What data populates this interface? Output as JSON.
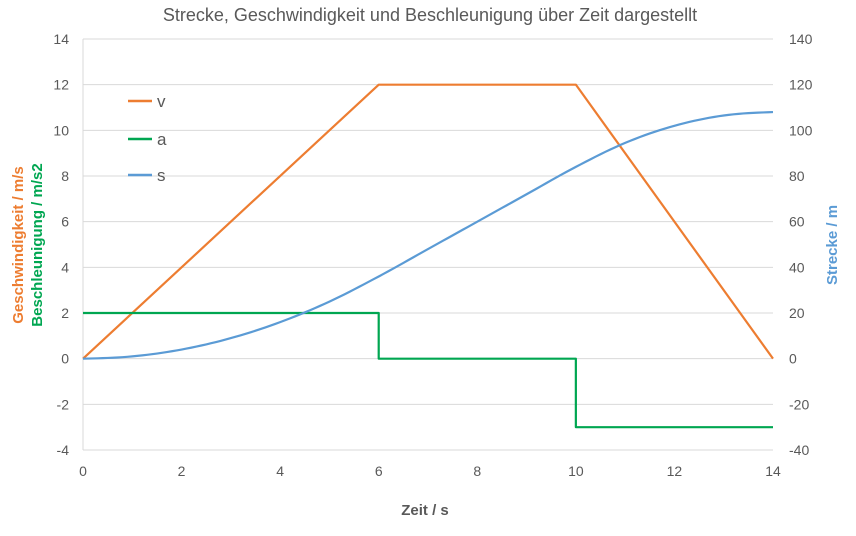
{
  "chart_data": {
    "type": "line",
    "title": "Strecke, Geschwindigkeit und Beschleunigung über Zeit dargestellt",
    "xlabel": "Zeit / s",
    "ylabel_left": [
      "Geschwindigkeit / m/s",
      "Beschleunigung / m/s2"
    ],
    "ylabel_right": "Strecke / m",
    "xlim": [
      0,
      14
    ],
    "x_ticks": [
      "0",
      "2",
      "4",
      "6",
      "8",
      "10",
      "12",
      "14"
    ],
    "ylim_left": [
      -4,
      14
    ],
    "y_ticks_left": [
      "-4",
      "-2",
      "0",
      "2",
      "4",
      "6",
      "8",
      "10",
      "12",
      "14"
    ],
    "ylim_right": [
      -40,
      140
    ],
    "y_ticks_right": [
      "-40",
      "-20",
      "0",
      "20",
      "40",
      "60",
      "80",
      "100",
      "120",
      "140"
    ],
    "grid": "horizontal",
    "legend_position": "top-left",
    "series": [
      {
        "name": "v",
        "axis": "left",
        "color": "#ED7D31",
        "x": [
          0,
          6,
          10,
          14
        ],
        "y": [
          0,
          12,
          12,
          0
        ]
      },
      {
        "name": "a",
        "axis": "left",
        "color": "#00A651",
        "step": true,
        "x": [
          0,
          6,
          6,
          10,
          10,
          14
        ],
        "y": [
          2,
          2,
          0,
          0,
          -3,
          -3
        ]
      },
      {
        "name": "s",
        "axis": "right",
        "color": "#5B9BD5",
        "x": [
          0,
          1,
          2,
          3,
          4,
          5,
          6,
          7,
          8,
          9,
          10,
          11,
          12,
          13,
          14
        ],
        "y": [
          0,
          1,
          4,
          9,
          16,
          25,
          36,
          48,
          60,
          72,
          84,
          94.5,
          102,
          106.5,
          108
        ]
      }
    ],
    "colors": {
      "v_label": "#ED7D31",
      "a_label": "#00A651",
      "s_label": "#5B9BD5",
      "text": "#595959",
      "grid": "#D9D9D9"
    }
  }
}
